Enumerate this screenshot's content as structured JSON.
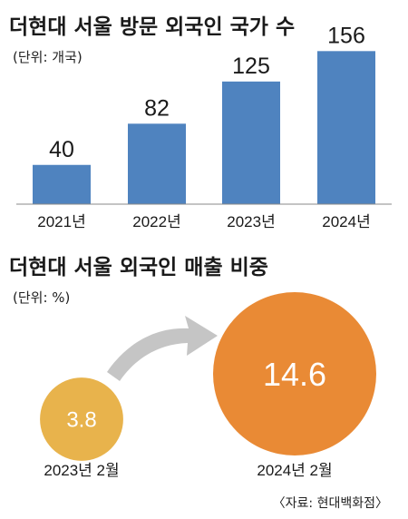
{
  "colors": {
    "bar": "#4f83bf",
    "bubble_small": "#e8b34c",
    "bubble_large": "#e98a35",
    "arrow": "#c5c5c5",
    "baseline": "#8a8a8a"
  },
  "chart_data": [
    {
      "type": "bar",
      "title": "더현대 서울 방문 외국인 국가 수",
      "unit": "(단위: 개국)",
      "categories": [
        "2021년",
        "2022년",
        "2023년",
        "2024년"
      ],
      "values": [
        40,
        82,
        125,
        156
      ],
      "ylim": [
        0,
        160
      ],
      "grid": false,
      "legend": "none"
    },
    {
      "type": "bubble",
      "title": "더현대 서울 외국인 매출 비중",
      "unit": "(단위: %)",
      "categories": [
        "2023년 2월",
        "2024년 2월"
      ],
      "values": [
        3.8,
        14.6
      ],
      "value_labels": [
        "3.8",
        "14.6"
      ]
    }
  ],
  "source": "〈자료: 현대백화점〉"
}
